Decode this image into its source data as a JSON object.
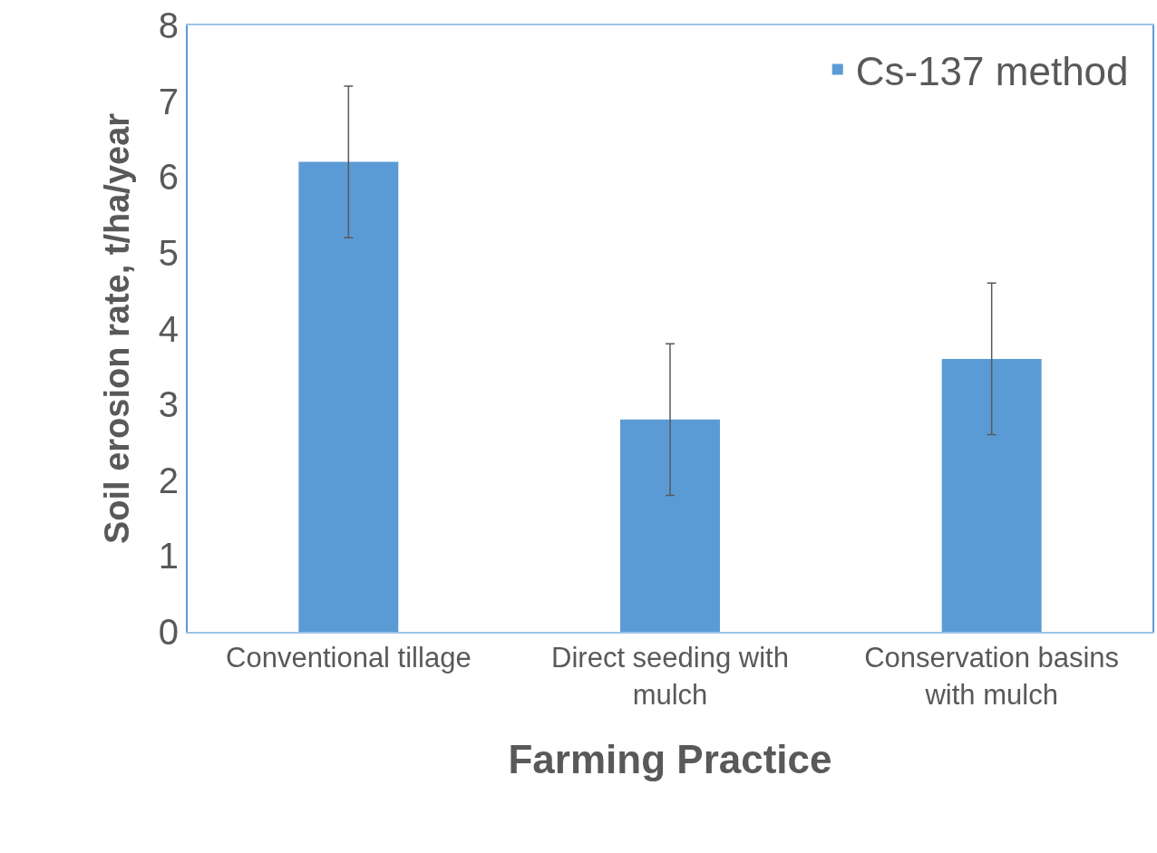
{
  "chart_data": {
    "type": "bar",
    "xlabel": "Farming Practice",
    "ylabel": "Soil erosion rate, t/ha/year",
    "categories": [
      "Conventional tillage",
      "Direct seeding with mulch",
      "Conservation basins with mulch"
    ],
    "series": [
      {
        "name": "Cs-137 method",
        "color": "#5b9bd5",
        "values": [
          6.2,
          2.8,
          3.6
        ],
        "errors": [
          1.0,
          1.0,
          1.0
        ]
      }
    ],
    "ylim": [
      0,
      8
    ],
    "yticks": [
      0,
      1,
      2,
      3,
      4,
      5,
      6,
      7,
      8
    ],
    "legend": "top right"
  }
}
